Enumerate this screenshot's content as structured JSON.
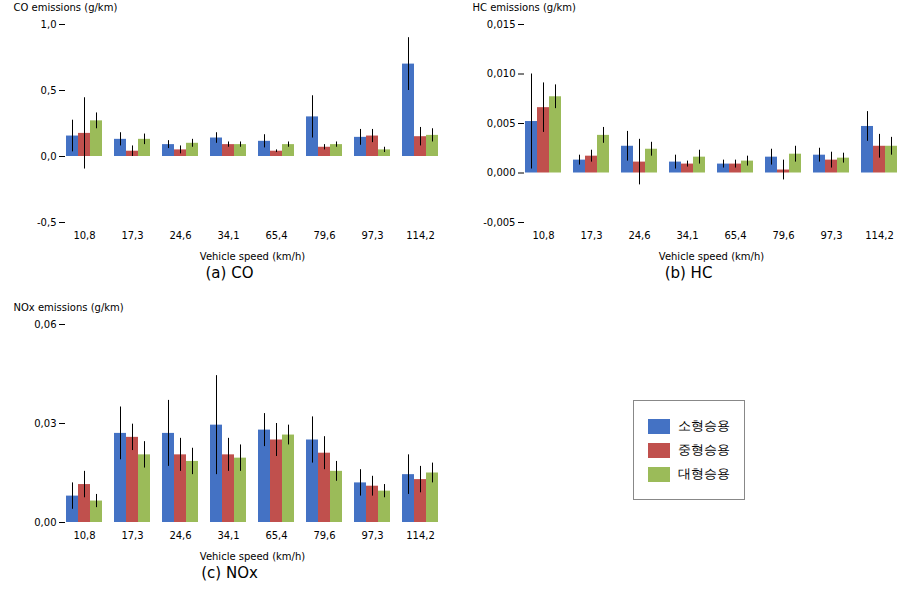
{
  "chart_data": [
    {
      "type": "bar",
      "title": "(a)  CO",
      "categories": [
        "10,8",
        "17,3",
        "24,6",
        "34,1",
        "65,4",
        "79,6",
        "97,3",
        "114,2"
      ],
      "series": [
        {
          "name": "소형승용",
          "color": "#4472C4",
          "values": [
            0.155,
            0.13,
            0.09,
            0.14,
            0.115,
            0.3,
            0.145,
            0.7
          ],
          "errors": [
            0.12,
            0.05,
            0.03,
            0.04,
            0.05,
            0.16,
            0.06,
            0.2
          ]
        },
        {
          "name": "중형승용",
          "color": "#C0504D",
          "values": [
            0.175,
            0.04,
            0.05,
            0.09,
            0.04,
            0.07,
            0.155,
            0.15
          ],
          "errors": [
            0.27,
            0.04,
            0.03,
            0.02,
            0.01,
            0.02,
            0.05,
            0.07
          ]
        },
        {
          "name": "대형승용",
          "color": "#9BBB59",
          "values": [
            0.27,
            0.13,
            0.1,
            0.09,
            0.09,
            0.09,
            0.05,
            0.16
          ],
          "errors": [
            0.06,
            0.04,
            0.03,
            0.02,
            0.02,
            0.02,
            0.02,
            0.05
          ]
        }
      ],
      "xlabel": "Vehicle speed (km/h)",
      "ylabel": "CO emissions (g/km)",
      "ylim": [
        -0.5,
        1.0
      ],
      "yticks": [
        {
          "value": -0.5,
          "label": "-0,5"
        },
        {
          "value": 0.0,
          "label": "0,0"
        },
        {
          "value": 0.5,
          "label": "0,5"
        },
        {
          "value": 1.0,
          "label": "1,0"
        }
      ]
    },
    {
      "type": "bar",
      "title": "(b)  HC",
      "categories": [
        "10,8",
        "17,3",
        "24,6",
        "34,1",
        "65,4",
        "79,6",
        "97,3",
        "114,2"
      ],
      "series": [
        {
          "name": "소형승용",
          "color": "#4472C4",
          "values": [
            0.0052,
            0.0013,
            0.0027,
            0.0011,
            0.0009,
            0.0016,
            0.0018,
            0.0047
          ],
          "errors": [
            0.0048,
            0.0005,
            0.0015,
            0.0007,
            0.0004,
            0.0008,
            0.0007,
            0.0015
          ]
        },
        {
          "name": "중형승용",
          "color": "#C0504D",
          "values": [
            0.0066,
            0.0017,
            0.0011,
            0.0009,
            0.0009,
            0.0003,
            0.0013,
            0.0027
          ],
          "errors": [
            0.0025,
            0.0006,
            0.0023,
            0.0003,
            0.0004,
            0.001,
            0.0008,
            0.0012
          ]
        },
        {
          "name": "대형승용",
          "color": "#9BBB59",
          "values": [
            0.0077,
            0.0038,
            0.0024,
            0.0016,
            0.0012,
            0.0019,
            0.0015,
            0.0027
          ],
          "errors": [
            0.0012,
            0.0008,
            0.0007,
            0.0007,
            0.0005,
            0.0008,
            0.0005,
            0.0009
          ]
        }
      ],
      "xlabel": "Vehicle speed (km/h)",
      "ylabel": "HC emissions (g/km)",
      "ylim": [
        -0.005,
        0.015
      ],
      "yticks": [
        {
          "value": -0.005,
          "label": "-0,005"
        },
        {
          "value": 0.0,
          "label": "0,000"
        },
        {
          "value": 0.005,
          "label": "0,005"
        },
        {
          "value": 0.01,
          "label": "0,010"
        },
        {
          "value": 0.015,
          "label": "0,015"
        }
      ]
    },
    {
      "type": "bar",
      "title": "(c)  NOx",
      "categories": [
        "10,8",
        "17,3",
        "24,6",
        "34,1",
        "65,4",
        "79,6",
        "97,3",
        "114,2"
      ],
      "series": [
        {
          "name": "소형승용",
          "color": "#4472C4",
          "values": [
            0.008,
            0.027,
            0.027,
            0.0295,
            0.028,
            0.025,
            0.012,
            0.0145
          ],
          "errors": [
            0.004,
            0.008,
            0.01,
            0.015,
            0.005,
            0.007,
            0.004,
            0.006
          ]
        },
        {
          "name": "중형승용",
          "color": "#C0504D",
          "values": [
            0.0115,
            0.0258,
            0.0205,
            0.0205,
            0.025,
            0.021,
            0.011,
            0.013
          ],
          "errors": [
            0.004,
            0.004,
            0.005,
            0.005,
            0.005,
            0.005,
            0.003,
            0.004
          ]
        },
        {
          "name": "대형승용",
          "color": "#9BBB59",
          "values": [
            0.0065,
            0.0205,
            0.0185,
            0.0195,
            0.0265,
            0.0155,
            0.0095,
            0.015
          ],
          "errors": [
            0.002,
            0.004,
            0.004,
            0.004,
            0.003,
            0.003,
            0.002,
            0.003
          ]
        }
      ],
      "xlabel": "Vehicle speed (km/h)",
      "ylabel": "NOx emissions (g/km)",
      "ylim": [
        0,
        0.06
      ],
      "yticks": [
        {
          "value": 0.0,
          "label": "0,00"
        },
        {
          "value": 0.03,
          "label": "0,03"
        },
        {
          "value": 0.06,
          "label": "0,06"
        }
      ]
    }
  ]
}
